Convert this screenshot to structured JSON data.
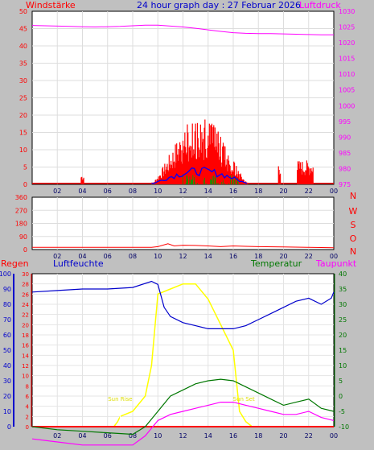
{
  "header": {
    "left_label": "Windstärke",
    "title": "24 hour graph day : 27 Februar 2026",
    "right_label": "Luftdruck"
  },
  "direction_labels": [
    "N",
    "W",
    "S",
    "O",
    "N"
  ],
  "bottom_header": {
    "regen": "Regen",
    "luftfeuchte": "Luftfeuchte",
    "temperatur": "Temperatur",
    "taupunkt": "Taupunkt"
  },
  "sun": {
    "rise": "Sun Rise",
    "set": "Sun Set"
  },
  "colors": {
    "background": "#c0c0c0",
    "plot_bg": "#ffffff",
    "wind": "#ff0000",
    "gust": "#0000ff",
    "avg": "#00a000",
    "pressure": "#ff00ff",
    "direction": "#ff0000",
    "humidity": "#0000cc",
    "temperature": "#007700",
    "dewpoint": "#ff00ff",
    "solar": "#ffff00",
    "rain": "#ff0000"
  },
  "chart_data": [
    {
      "type": "bar",
      "name": "wind-chart",
      "x_ticks": [
        "02",
        "04",
        "06",
        "08",
        "10",
        "12",
        "14",
        "16",
        "18",
        "20",
        "22",
        "00"
      ],
      "xlim": [
        0,
        24
      ],
      "y_left_ticks": [
        "0",
        "5",
        "10",
        "15",
        "20",
        "25",
        "30",
        "35",
        "40",
        "45",
        "50"
      ],
      "y_left_lim": [
        0,
        50
      ],
      "y_right_ticks": [
        "975",
        "980",
        "985",
        "990",
        "995",
        "1000",
        "1005",
        "1010",
        "1015",
        "1020",
        "1025",
        "1030"
      ],
      "y_right_lim": [
        975,
        1030
      ],
      "pressure": {
        "x": [
          0,
          1,
          2,
          3,
          4,
          5,
          6,
          7,
          8,
          9,
          10,
          11,
          12,
          13,
          14,
          15,
          16,
          17,
          18,
          19,
          20,
          21,
          22,
          23,
          24
        ],
        "y": [
          1025.5,
          1025.4,
          1025.3,
          1025.2,
          1025.1,
          1025.0,
          1025.1,
          1025.2,
          1025.4,
          1025.6,
          1025.6,
          1025.3,
          1025.0,
          1024.6,
          1024.1,
          1023.6,
          1023.2,
          1023.0,
          1022.9,
          1022.9,
          1022.8,
          1022.7,
          1022.6,
          1022.5,
          1022.5
        ]
      },
      "wind_bursts": [
        {
          "from": 3.9,
          "to": 4.1,
          "peak": 3
        },
        {
          "from": 9.5,
          "to": 17.2,
          "peak": 20
        },
        {
          "from": 19.6,
          "to": 19.8,
          "peak": 7
        },
        {
          "from": 21.1,
          "to": 22.4,
          "peak": 7
        }
      ],
      "gust_peak": 5,
      "avg_peak": 3
    },
    {
      "type": "line",
      "name": "direction-chart",
      "x_ticks": [
        "02",
        "04",
        "06",
        "08",
        "10",
        "12",
        "14",
        "16",
        "18",
        "20",
        "22",
        "00"
      ],
      "xlim": [
        0,
        24
      ],
      "y_ticks": [
        "0",
        "90",
        "180",
        "270",
        "360"
      ],
      "ylim": [
        0,
        360
      ],
      "x": [
        0,
        2,
        4,
        6,
        8,
        9.5,
        10,
        10.8,
        11.3,
        12,
        13,
        14,
        15,
        16,
        17,
        18,
        20,
        22,
        24
      ],
      "y": [
        15,
        15,
        15,
        15,
        15,
        15,
        20,
        40,
        25,
        30,
        28,
        25,
        20,
        25,
        22,
        20,
        18,
        15,
        12
      ]
    },
    {
      "type": "line",
      "name": "climate-chart",
      "x_ticks": [
        "02",
        "04",
        "06",
        "08",
        "10",
        "12",
        "14",
        "16",
        "18",
        "20",
        "22",
        "00"
      ],
      "xlim": [
        0,
        24
      ],
      "humidity_ticks": [
        "0",
        "10",
        "20",
        "30",
        "40",
        "50",
        "60",
        "70",
        "80",
        "90",
        "100"
      ],
      "humidity_lim": [
        0,
        100
      ],
      "rain_ticks": [
        "0",
        "2",
        "4",
        "6",
        "8",
        "10",
        "12",
        "14",
        "16",
        "18",
        "20",
        "22",
        "24",
        "26",
        "28",
        "30"
      ],
      "rain_lim": [
        0,
        30
      ],
      "temp_ticks": [
        "-10",
        "-5",
        "0",
        "5",
        "10",
        "15",
        "20",
        "25",
        "30",
        "35",
        "40"
      ],
      "temp_lim": [
        -10,
        40
      ],
      "series": [
        {
          "name": "Luftfeuchte",
          "x": [
            0,
            2,
            4,
            6,
            8,
            9.5,
            10,
            10.5,
            11,
            12,
            13,
            14,
            15,
            16,
            17,
            18,
            19,
            20,
            21,
            22,
            23,
            23.8,
            24
          ],
          "y": [
            88,
            89,
            90,
            90,
            91,
            95,
            93,
            78,
            72,
            68,
            66,
            64,
            64,
            64,
            66,
            70,
            74,
            78,
            82,
            84,
            80,
            84,
            88
          ]
        },
        {
          "name": "Temperatur",
          "x": [
            0,
            2,
            4,
            6,
            8,
            9,
            10,
            11,
            12,
            13,
            14,
            15,
            16,
            17,
            18,
            19,
            20,
            21,
            22,
            23,
            24
          ],
          "y": [
            -10,
            -11,
            -11.5,
            -12,
            -12.5,
            -10,
            -5,
            0,
            2,
            4,
            5,
            5.5,
            5,
            3,
            1,
            -1,
            -3,
            -2,
            -1,
            -4,
            -5
          ]
        },
        {
          "name": "Taupunkt",
          "x": [
            0,
            2,
            4,
            6,
            8,
            9,
            10,
            11,
            12,
            13,
            14,
            15,
            16,
            17,
            18,
            19,
            20,
            21,
            22,
            23,
            24
          ],
          "y": [
            -14,
            -15,
            -16,
            -16,
            -16,
            -13,
            -8,
            -6,
            -5,
            -4,
            -3,
            -2,
            -2,
            -3,
            -4,
            -5,
            -6,
            -6,
            -5,
            -7,
            -8
          ]
        }
      ],
      "solar": {
        "x": [
          0,
          6.5,
          6.8,
          7,
          8,
          9,
          9.5,
          10,
          11,
          12,
          13,
          14,
          15,
          16,
          16.5,
          17,
          17.5,
          24
        ],
        "y": [
          0,
          0,
          1,
          2,
          3,
          6,
          12,
          26,
          27,
          28,
          28,
          25,
          20,
          15,
          3,
          1,
          0,
          0
        ]
      },
      "sunrise": 7.0,
      "sunset": 17.1,
      "rain": {
        "x": [
          0,
          24
        ],
        "y": [
          0,
          0
        ]
      }
    }
  ]
}
